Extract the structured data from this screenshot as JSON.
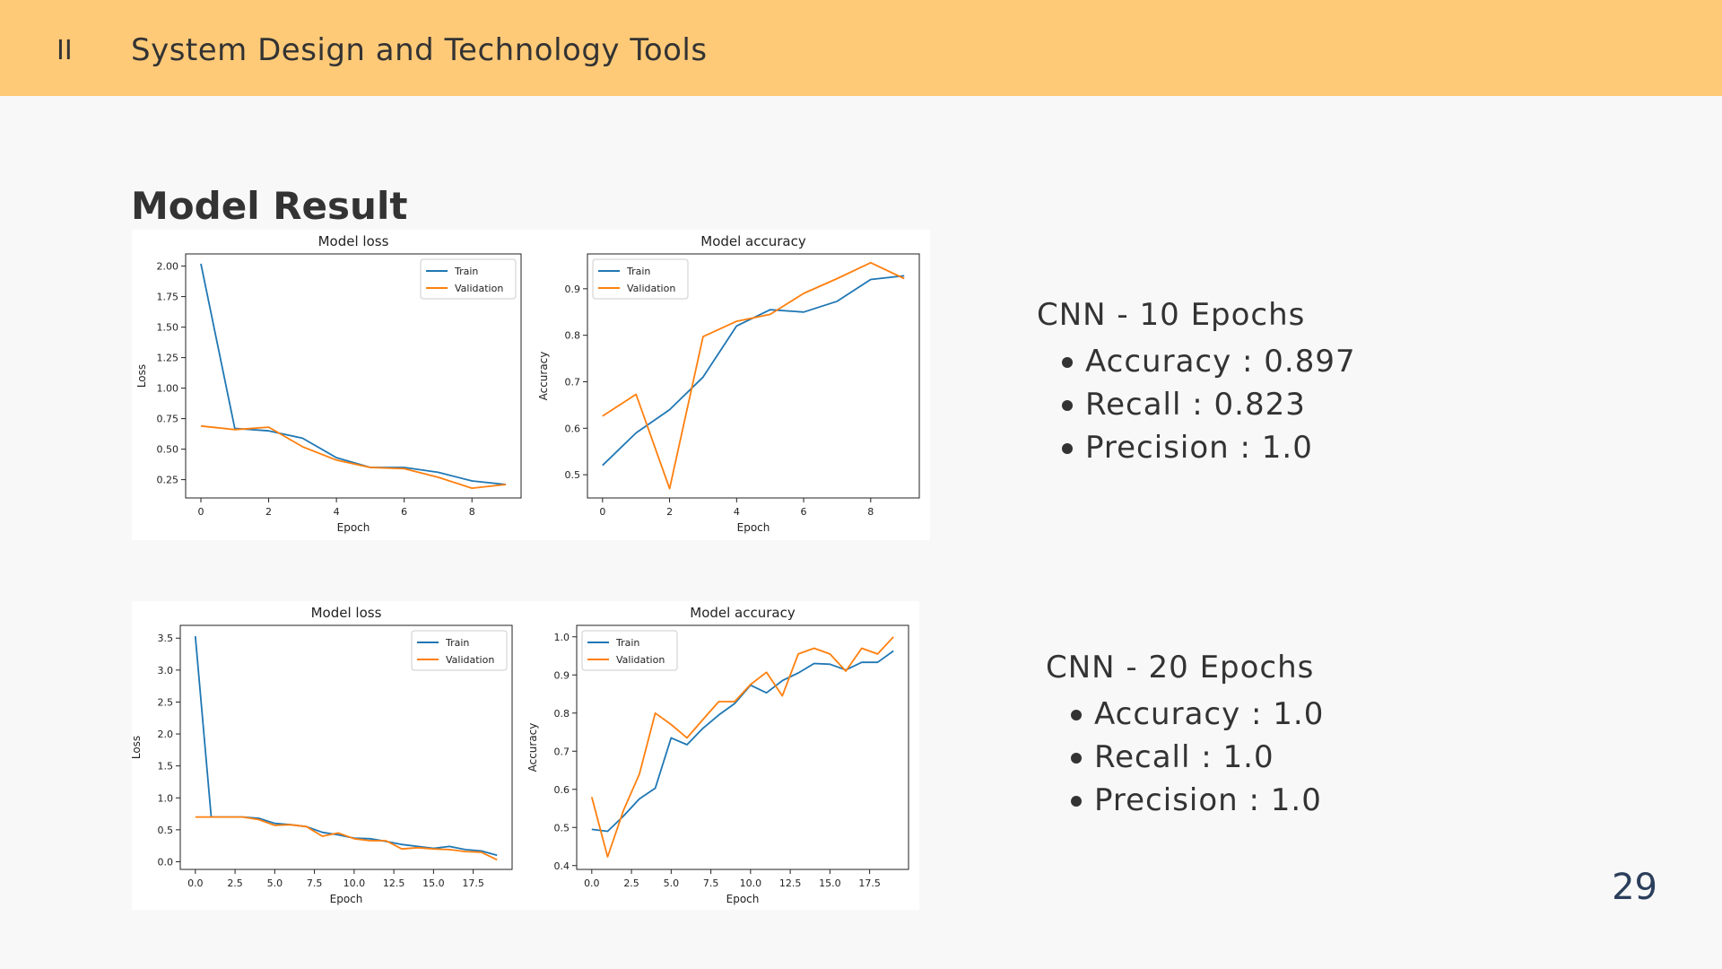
{
  "header": {
    "section_number": "II",
    "title": "System Design and Technology Tools"
  },
  "section_title": "Model Result",
  "page_number": "29",
  "colors": {
    "header_bg": "#ffca78",
    "train": "#1f77b4",
    "validation": "#ff7f0e",
    "page_number": "#2b3f5c"
  },
  "metrics": [
    {
      "title": "CNN - 10 Epochs",
      "items": [
        "Accuracy : 0.897",
        "Recall : 0.823",
        "Precision : 1.0"
      ]
    },
    {
      "title": "CNN - 20 Epochs",
      "items": [
        "Accuracy : 1.0",
        "Recall : 1.0",
        "Precision : 1.0"
      ]
    }
  ],
  "chart_data": [
    {
      "type": "line",
      "title": "Model loss",
      "xlabel": "Epoch",
      "ylabel": "Loss",
      "legend": "top-right",
      "xlim": [
        -0.45,
        9.45
      ],
      "ylim": [
        0.1,
        2.1
      ],
      "xticks": [
        0,
        2,
        4,
        6,
        8
      ],
      "xtick_labels": [
        "0",
        "2",
        "4",
        "6",
        "8"
      ],
      "yticks": [
        0.25,
        0.5,
        0.75,
        1.0,
        1.25,
        1.5,
        1.75,
        2.0
      ],
      "ytick_labels": [
        "0.25",
        "0.50",
        "0.75",
        "1.00",
        "1.25",
        "1.50",
        "1.75",
        "2.00"
      ],
      "x": [
        0,
        1,
        2,
        3,
        4,
        5,
        6,
        7,
        8,
        9
      ],
      "series": [
        {
          "name": "Train",
          "values": [
            2.02,
            0.67,
            0.65,
            0.59,
            0.43,
            0.35,
            0.35,
            0.31,
            0.24,
            0.21
          ]
        },
        {
          "name": "Validation",
          "values": [
            0.69,
            0.66,
            0.68,
            0.52,
            0.41,
            0.35,
            0.34,
            0.27,
            0.18,
            0.21
          ]
        }
      ]
    },
    {
      "type": "line",
      "title": "Model accuracy",
      "xlabel": "Epoch",
      "ylabel": "Accuracy",
      "legend": "top-left",
      "xlim": [
        -0.45,
        9.45
      ],
      "ylim": [
        0.45,
        0.975
      ],
      "xticks": [
        0,
        2,
        4,
        6,
        8
      ],
      "xtick_labels": [
        "0",
        "2",
        "4",
        "6",
        "8"
      ],
      "yticks": [
        0.5,
        0.6,
        0.7,
        0.8,
        0.9
      ],
      "ytick_labels": [
        "0.5",
        "0.6",
        "0.7",
        "0.8",
        "0.9"
      ],
      "x": [
        0,
        1,
        2,
        3,
        4,
        5,
        6,
        7,
        8,
        9
      ],
      "series": [
        {
          "name": "Train",
          "values": [
            0.52,
            0.59,
            0.64,
            0.71,
            0.82,
            0.855,
            0.85,
            0.873,
            0.92,
            0.928
          ]
        },
        {
          "name": "Validation",
          "values": [
            0.626,
            0.673,
            0.47,
            0.797,
            0.83,
            0.845,
            0.89,
            0.922,
            0.956,
            0.922
          ]
        }
      ]
    },
    {
      "type": "line",
      "title": "Model loss",
      "xlabel": "Epoch",
      "ylabel": "Loss",
      "legend": "top-right",
      "xlim": [
        -0.95,
        19.95
      ],
      "ylim": [
        -0.12,
        3.7
      ],
      "xticks": [
        0,
        2.5,
        5,
        7.5,
        10,
        12.5,
        15,
        17.5
      ],
      "xtick_labels": [
        "0.0",
        "2.5",
        "5.0",
        "7.5",
        "10.0",
        "12.5",
        "15.0",
        "17.5"
      ],
      "yticks": [
        0,
        0.5,
        1.0,
        1.5,
        2.0,
        2.5,
        3.0,
        3.5
      ],
      "ytick_labels": [
        "0.0",
        "0.5",
        "1.0",
        "1.5",
        "2.0",
        "2.5",
        "3.0",
        "3.5"
      ],
      "x": [
        0,
        1,
        2,
        3,
        4,
        5,
        6,
        7,
        8,
        9,
        10,
        11,
        12,
        13,
        14,
        15,
        16,
        17,
        18,
        19
      ],
      "series": [
        {
          "name": "Train",
          "values": [
            3.53,
            0.7,
            0.7,
            0.7,
            0.68,
            0.6,
            0.58,
            0.55,
            0.46,
            0.42,
            0.37,
            0.36,
            0.32,
            0.27,
            0.24,
            0.21,
            0.24,
            0.19,
            0.17,
            0.1
          ]
        },
        {
          "name": "Validation",
          "values": [
            0.7,
            0.7,
            0.7,
            0.7,
            0.66,
            0.57,
            0.58,
            0.55,
            0.4,
            0.45,
            0.36,
            0.33,
            0.33,
            0.2,
            0.22,
            0.2,
            0.19,
            0.16,
            0.15,
            0.03
          ]
        }
      ]
    },
    {
      "type": "line",
      "title": "Model accuracy",
      "xlabel": "Epoch",
      "ylabel": "Accuracy",
      "legend": "top-left",
      "xlim": [
        -0.95,
        19.95
      ],
      "ylim": [
        0.39,
        1.03
      ],
      "xticks": [
        0,
        2.5,
        5,
        7.5,
        10,
        12.5,
        15,
        17.5
      ],
      "xtick_labels": [
        "0.0",
        "2.5",
        "5.0",
        "7.5",
        "10.0",
        "12.5",
        "15.0",
        "17.5"
      ],
      "yticks": [
        0.4,
        0.5,
        0.6,
        0.7,
        0.8,
        0.9,
        1.0
      ],
      "ytick_labels": [
        "0.4",
        "0.5",
        "0.6",
        "0.7",
        "0.8",
        "0.9",
        "1.0"
      ],
      "x": [
        0,
        1,
        2,
        3,
        4,
        5,
        6,
        7,
        8,
        9,
        10,
        11,
        12,
        13,
        14,
        15,
        16,
        17,
        18,
        19
      ],
      "series": [
        {
          "name": "Train",
          "values": [
            0.495,
            0.49,
            0.53,
            0.575,
            0.603,
            0.735,
            0.717,
            0.76,
            0.795,
            0.825,
            0.873,
            0.853,
            0.885,
            0.905,
            0.93,
            0.928,
            0.913,
            0.933,
            0.933,
            0.963
          ]
        },
        {
          "name": "Validation",
          "values": [
            0.58,
            0.423,
            0.545,
            0.64,
            0.8,
            0.77,
            0.735,
            0.783,
            0.83,
            0.83,
            0.875,
            0.907,
            0.845,
            0.955,
            0.97,
            0.955,
            0.91,
            0.97,
            0.955,
            1.0
          ]
        }
      ]
    }
  ]
}
